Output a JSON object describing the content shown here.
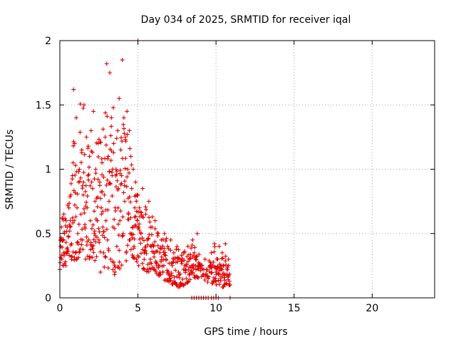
{
  "chart_data": {
    "type": "scatter",
    "title": "Day 034 of 2025, SRMTID for receiver iqal",
    "xlabel": "GPS time / hours",
    "ylabel": "SRMTID / TECUs",
    "xlim": [
      0,
      24
    ],
    "ylim": [
      0,
      2
    ],
    "xticks": [
      0,
      5,
      10,
      15,
      20
    ],
    "yticks": [
      0,
      0.5,
      1,
      1.5,
      2
    ],
    "xtick_labels": [
      "0",
      "5",
      "10",
      "15",
      "20"
    ],
    "ytick_labels": [
      "0",
      "0.5",
      "1",
      "1.5",
      "2"
    ],
    "grid": true,
    "marker": "+",
    "series": [
      {
        "name": "SRMTID",
        "color": "#e00000",
        "envelope": [
          {
            "t": 0.0,
            "lo": 0.22,
            "hi": 0.65
          },
          {
            "t": 0.5,
            "lo": 0.25,
            "hi": 0.8
          },
          {
            "t": 1.0,
            "lo": 0.3,
            "hi": 1.62
          },
          {
            "t": 1.5,
            "lo": 0.28,
            "hi": 1.5
          },
          {
            "t": 2.0,
            "lo": 0.3,
            "hi": 1.45
          },
          {
            "t": 2.5,
            "lo": 0.28,
            "hi": 1.3
          },
          {
            "t": 3.0,
            "lo": 0.22,
            "hi": 1.82
          },
          {
            "t": 3.5,
            "lo": 0.18,
            "hi": 1.65
          },
          {
            "t": 4.0,
            "lo": 0.25,
            "hi": 1.85
          },
          {
            "t": 4.5,
            "lo": 0.3,
            "hi": 1.45
          },
          {
            "t": 5.0,
            "lo": 0.25,
            "hi": 0.9
          },
          {
            "t": 5.5,
            "lo": 0.2,
            "hi": 0.8
          },
          {
            "t": 6.0,
            "lo": 0.2,
            "hi": 0.65
          },
          {
            "t": 6.5,
            "lo": 0.15,
            "hi": 0.55
          },
          {
            "t": 7.0,
            "lo": 0.12,
            "hi": 0.5
          },
          {
            "t": 7.5,
            "lo": 0.08,
            "hi": 0.45
          },
          {
            "t": 8.0,
            "lo": 0.1,
            "hi": 0.42
          },
          {
            "t": 8.5,
            "lo": 0.15,
            "hi": 0.5
          },
          {
            "t": 9.0,
            "lo": 0.15,
            "hi": 0.35
          },
          {
            "t": 9.5,
            "lo": 0.12,
            "hi": 0.32
          },
          {
            "t": 10.0,
            "lo": 0.1,
            "hi": 0.45
          },
          {
            "t": 10.5,
            "lo": 0.08,
            "hi": 0.42
          },
          {
            "t": 10.9,
            "lo": 0.08,
            "hi": 0.25
          }
        ],
        "points": [
          [
            0.05,
            0.4
          ],
          [
            0.1,
            0.55
          ],
          [
            0.12,
            0.3
          ],
          [
            0.15,
            0.62
          ],
          [
            0.2,
            0.45
          ],
          [
            0.22,
            0.25
          ],
          [
            0.25,
            0.35
          ],
          [
            0.3,
            0.5
          ],
          [
            0.35,
            0.28
          ],
          [
            0.4,
            0.6
          ],
          [
            0.45,
            0.38
          ],
          [
            0.5,
            0.72
          ],
          [
            0.55,
            0.48
          ],
          [
            0.6,
            0.33
          ],
          [
            0.65,
            0.55
          ],
          [
            0.7,
            0.8
          ],
          [
            0.75,
            0.42
          ],
          [
            0.8,
            0.95
          ],
          [
            0.85,
            1.05
          ],
          [
            0.88,
            1.62
          ],
          [
            0.92,
            0.6
          ],
          [
            0.95,
            1.2
          ],
          [
            1.0,
            0.35
          ],
          [
            1.05,
            1.4
          ],
          [
            1.1,
            0.7
          ],
          [
            1.15,
            0.5
          ],
          [
            1.2,
            0.9
          ],
          [
            1.25,
            1.0
          ],
          [
            1.3,
            0.38
          ],
          [
            1.35,
            0.65
          ],
          [
            1.4,
            1.15
          ],
          [
            1.45,
            0.45
          ],
          [
            1.5,
            0.8
          ],
          [
            1.55,
            1.5
          ],
          [
            1.6,
            0.55
          ],
          [
            1.65,
            0.3
          ],
          [
            1.7,
            1.25
          ],
          [
            1.75,
            0.7
          ],
          [
            1.8,
            0.95
          ],
          [
            1.85,
            0.45
          ],
          [
            1.9,
            1.1
          ],
          [
            1.95,
            0.6
          ],
          [
            2.0,
            1.3
          ],
          [
            2.05,
            0.4
          ],
          [
            2.1,
            0.85
          ],
          [
            2.15,
            1.45
          ],
          [
            2.2,
            0.5
          ],
          [
            2.25,
            0.75
          ],
          [
            2.3,
            1.0
          ],
          [
            2.35,
            0.32
          ],
          [
            2.4,
            0.6
          ],
          [
            2.45,
            1.2
          ],
          [
            2.5,
            0.45
          ],
          [
            2.55,
            0.9
          ],
          [
            2.6,
            0.2
          ],
          [
            2.65,
            0.7
          ],
          [
            2.7,
            1.05
          ],
          [
            2.75,
            0.55
          ],
          [
            2.8,
            0.35
          ],
          [
            2.85,
            0.8
          ],
          [
            2.9,
            1.25
          ],
          [
            2.95,
            0.6
          ],
          [
            3.0,
            1.82
          ],
          [
            3.05,
            0.45
          ],
          [
            3.1,
            1.1
          ],
          [
            3.15,
            0.75
          ],
          [
            3.2,
            1.75
          ],
          [
            3.25,
            0.3
          ],
          [
            3.3,
            1.4
          ],
          [
            3.35,
            0.95
          ],
          [
            3.4,
            0.55
          ],
          [
            3.45,
            1.2
          ],
          [
            3.5,
            0.18
          ],
          [
            3.55,
            0.7
          ],
          [
            3.6,
            1.0
          ],
          [
            3.65,
            0.4
          ],
          [
            3.7,
            1.3
          ],
          [
            3.75,
            0.85
          ],
          [
            3.8,
            1.55
          ],
          [
            3.85,
            0.6
          ],
          [
            3.9,
            1.15
          ],
          [
            3.95,
            0.95
          ],
          [
            4.0,
            1.85
          ],
          [
            4.05,
            0.5
          ],
          [
            4.1,
            1.4
          ],
          [
            4.15,
            0.75
          ],
          [
            4.2,
            1.25
          ],
          [
            4.25,
            0.35
          ],
          [
            4.3,
            1.45
          ],
          [
            4.35,
            1.0
          ],
          [
            4.4,
            0.65
          ],
          [
            4.45,
            1.3
          ],
          [
            4.5,
            0.45
          ],
          [
            4.55,
            1.1
          ],
          [
            4.6,
            0.85
          ],
          [
            4.65,
            0.55
          ],
          [
            4.7,
            1.0
          ],
          [
            4.75,
            0.4
          ],
          [
            4.8,
            0.7
          ],
          [
            4.85,
            0.9
          ],
          [
            4.9,
            0.3
          ],
          [
            4.95,
            0.6
          ],
          [
            5.0,
            0.8
          ],
          [
            5.05,
            0.25
          ],
          [
            5.1,
            0.7
          ],
          [
            5.2,
            0.5
          ],
          [
            5.3,
            0.85
          ],
          [
            5.4,
            0.35
          ],
          [
            5.5,
            0.65
          ],
          [
            5.6,
            0.45
          ],
          [
            5.7,
            0.75
          ],
          [
            5.8,
            0.3
          ],
          [
            5.9,
            0.55
          ],
          [
            6.0,
            0.4
          ],
          [
            6.1,
            0.6
          ],
          [
            6.2,
            0.25
          ],
          [
            6.3,
            0.5
          ],
          [
            6.4,
            0.35
          ],
          [
            6.5,
            0.45
          ],
          [
            6.6,
            0.2
          ],
          [
            6.7,
            0.5
          ],
          [
            6.8,
            0.3
          ],
          [
            6.9,
            0.4
          ],
          [
            7.0,
            0.15
          ],
          [
            7.1,
            0.45
          ],
          [
            7.2,
            0.25
          ],
          [
            7.3,
            0.35
          ],
          [
            7.4,
            0.12
          ],
          [
            7.5,
            0.4
          ],
          [
            7.6,
            0.2
          ],
          [
            7.7,
            0.3
          ],
          [
            7.8,
            0.1
          ],
          [
            7.9,
            0.35
          ],
          [
            8.0,
            0.25
          ],
          [
            8.1,
            0.15
          ],
          [
            8.2,
            0.4
          ],
          [
            8.3,
            0.3
          ],
          [
            8.4,
            0.2
          ],
          [
            8.5,
            0.45
          ],
          [
            8.6,
            0.35
          ],
          [
            8.7,
            0.25
          ],
          [
            8.8,
            0.5
          ],
          [
            9.1,
            0.25
          ],
          [
            9.2,
            0.18
          ],
          [
            9.3,
            0.3
          ],
          [
            9.4,
            0.22
          ],
          [
            9.5,
            0.15
          ],
          [
            9.7,
            0.35
          ],
          [
            9.8,
            0.25
          ],
          [
            9.9,
            0.42
          ],
          [
            10.0,
            0.2
          ],
          [
            10.1,
            0.3
          ],
          [
            10.2,
            0.4
          ],
          [
            10.3,
            0.15
          ],
          [
            10.4,
            0.35
          ],
          [
            10.5,
            0.25
          ],
          [
            10.6,
            0.42
          ],
          [
            10.7,
            0.18
          ],
          [
            10.8,
            0.3
          ],
          [
            10.9,
            0.1
          ],
          [
            8.45,
            0.0
          ],
          [
            8.6,
            0.0
          ],
          [
            8.75,
            0.0
          ],
          [
            8.9,
            0.0
          ],
          [
            9.05,
            0.0
          ],
          [
            9.2,
            0.0
          ],
          [
            9.35,
            0.0
          ],
          [
            9.5,
            0.0
          ],
          [
            9.7,
            0.0
          ],
          [
            9.85,
            0.0
          ],
          [
            10.0,
            0.0
          ],
          [
            10.15,
            0.0
          ],
          [
            10.9,
            0.0
          ],
          [
            5.0,
            2.0
          ]
        ]
      }
    ]
  }
}
